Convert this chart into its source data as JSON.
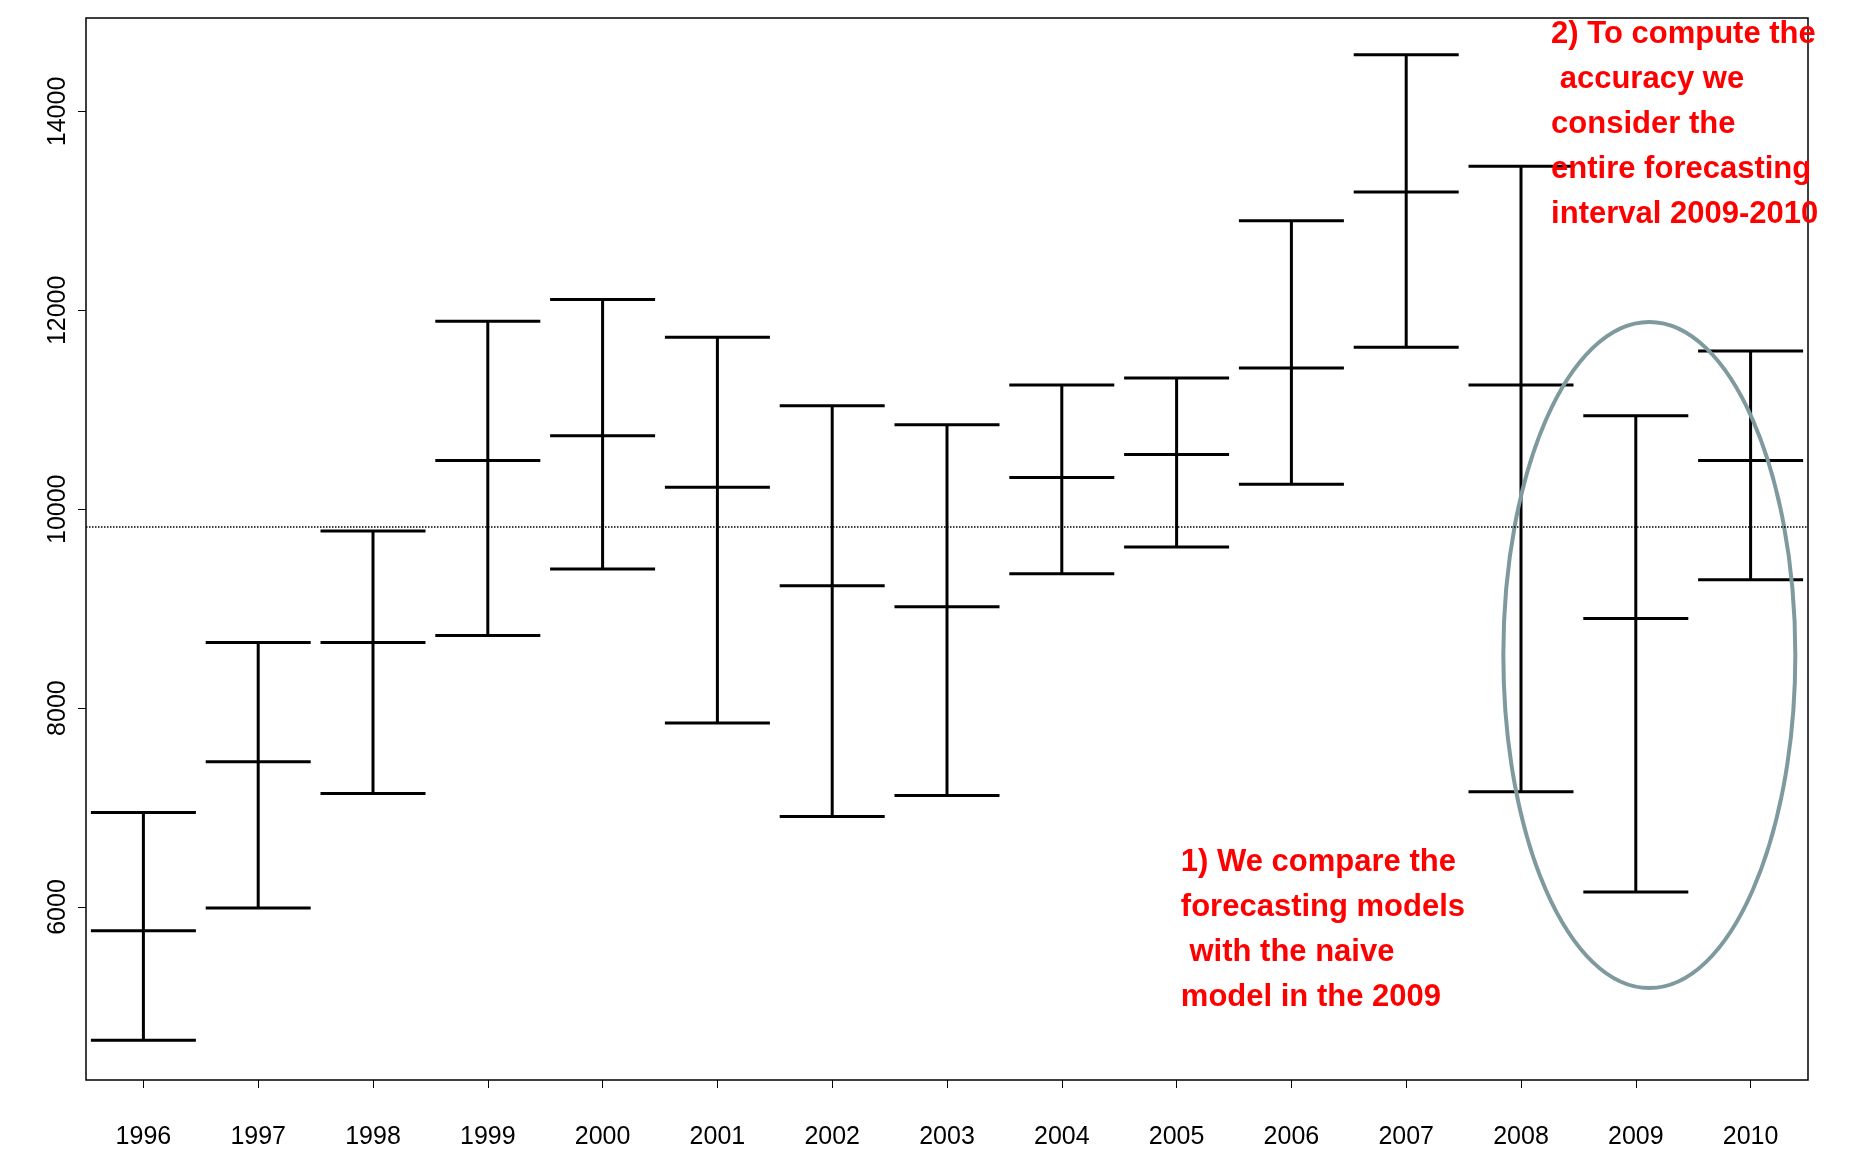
{
  "chart_data": {
    "type": "box",
    "categories": [
      "1996",
      "1997",
      "1998",
      "1999",
      "2000",
      "2001",
      "2002",
      "2003",
      "2004",
      "2005",
      "2006",
      "2007",
      "2008",
      "2009",
      "2010"
    ],
    "series": [
      {
        "color": "#000000",
        "boxes": [
          {
            "low": 4660,
            "q1": 5760,
            "median": 5760,
            "q3": 5760,
            "high": 6950
          },
          {
            "low": 5990,
            "q1": 7460,
            "median": 7460,
            "q3": 7460,
            "high": 8660
          },
          {
            "low": 7140,
            "q1": 8660,
            "median": 8660,
            "q3": 8660,
            "high": 9780
          },
          {
            "low": 8730,
            "q1": 10490,
            "median": 10490,
            "q3": 10490,
            "high": 11890
          },
          {
            "low": 9400,
            "q1": 10740,
            "median": 10740,
            "q3": 10740,
            "high": 12110
          },
          {
            "low": 7850,
            "q1": 10220,
            "median": 10220,
            "q3": 10220,
            "high": 11730
          },
          {
            "low": 6910,
            "q1": 9230,
            "median": 9230,
            "q3": 9230,
            "high": 11040
          },
          {
            "low": 7120,
            "q1": 9020,
            "median": 9020,
            "q3": 9020,
            "high": 10850
          },
          {
            "low": 9350,
            "q1": 10320,
            "median": 10320,
            "q3": 10320,
            "high": 11250
          },
          {
            "low": 9620,
            "q1": 10550,
            "median": 10550,
            "q3": 10550,
            "high": 11320
          },
          {
            "low": 10250,
            "q1": 11420,
            "median": 11420,
            "q3": 11420,
            "high": 12900
          },
          {
            "low": 11630,
            "q1": 13190,
            "median": 13190,
            "q3": 13190,
            "high": 14570
          },
          {
            "low": 7160,
            "q1": 11250,
            "median": 11250,
            "q3": 11250,
            "high": 13450
          },
          {
            "low": 6150,
            "q1": 8900,
            "median": 8900,
            "q3": 8900,
            "high": 10940
          },
          {
            "low": 9290,
            "q1": 10490,
            "median": 10490,
            "q3": 10490,
            "high": 11590
          }
        ]
      }
    ],
    "ylim": [
      4260,
      14940
    ],
    "yticks": [
      6000,
      8000,
      10000,
      12000,
      14000
    ],
    "ref_lines": [
      {
        "axis": "y",
        "value": 9820,
        "color": "#000000",
        "line_style": "dotted"
      }
    ],
    "annotations": [
      "1) We compare the forecasting models with the naive model in the 2009",
      "2) To compute the accuracy we consider the entire forecasting interval 2009-2010"
    ],
    "grid": false
  }
}
